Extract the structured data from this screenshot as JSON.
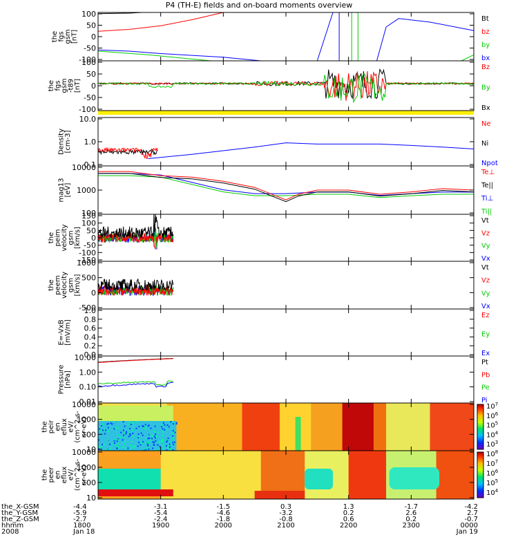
{
  "title": "P4 (TH-E) fields and on-board moments overview",
  "panels": [
    {
      "id": "fgs",
      "ylabel": [
        "the",
        "fgs",
        "gsm",
        "[nT]"
      ],
      "yticks": [
        "100",
        "50",
        "0",
        "-50",
        "-100"
      ],
      "legend": [
        {
          "text": "Bt",
          "color": "#000000"
        },
        {
          "text": "bz",
          "color": "#ff0000"
        },
        {
          "text": "by",
          "color": "#00cc00"
        },
        {
          "text": "bx",
          "color": "#0000ff"
        }
      ]
    },
    {
      "id": "fgs_t89",
      "ylabel": [
        "the",
        "fgs",
        "gsm",
        "-t89",
        "[nT]"
      ],
      "yticks": [
        "100",
        "50",
        "0",
        "-50",
        "-100"
      ],
      "legend": [
        {
          "text": "Bz",
          "color": "#ff0000"
        },
        {
          "text": "By",
          "color": "#00cc00"
        },
        {
          "text": "Bx",
          "color": "#000000"
        }
      ]
    },
    {
      "id": "density",
      "ylabel": [
        "Density",
        "[cm-3]"
      ],
      "yticks": [
        "10.0",
        "1.0",
        "0.1"
      ],
      "legend": [
        {
          "text": "Ne",
          "color": "#ff0000"
        },
        {
          "text": "Ni",
          "color": "#000000"
        },
        {
          "text": "Npot",
          "color": "#0000ff"
        }
      ]
    },
    {
      "id": "temperature",
      "ylabel": [
        "mag13",
        "[eV]"
      ],
      "yticks": [
        "10000",
        "1000",
        "100"
      ],
      "legend": [
        {
          "text": "Te⊥",
          "color": "#ff0000"
        },
        {
          "text": "Te||",
          "color": "#000000"
        },
        {
          "text": "Ti⊥",
          "color": "#0000ff"
        },
        {
          "text": "Ti||",
          "color": "#00cc00"
        }
      ]
    },
    {
      "id": "peim_velocity",
      "ylabel": [
        "the",
        "peim",
        "velocity",
        "gsm",
        "[km/s]"
      ],
      "yticks": [
        "150",
        "100",
        "50",
        "0",
        "-50",
        "-100",
        "-150"
      ],
      "legend": [
        {
          "text": "Vt",
          "color": "#000000"
        },
        {
          "text": "Vz",
          "color": "#ff0000"
        },
        {
          "text": "Vy",
          "color": "#00cc00"
        },
        {
          "text": "Vx",
          "color": "#0000ff"
        }
      ]
    },
    {
      "id": "peem_velocity",
      "ylabel": [
        "the",
        "peem",
        "velocity",
        "gsm",
        "[km/s]"
      ],
      "yticks": [
        "1000",
        "500",
        "0",
        "-500"
      ],
      "legend": [
        {
          "text": "Vt",
          "color": "#000000"
        },
        {
          "text": "Vz",
          "color": "#ff0000"
        },
        {
          "text": "Vy",
          "color": "#00cc00"
        },
        {
          "text": "Vx",
          "color": "#0000ff"
        }
      ]
    },
    {
      "id": "efield",
      "ylabel": [
        "E=-VxB",
        "[mV/m]"
      ],
      "yticks": [
        "1.0",
        "0.8",
        "0.6",
        "0.4",
        "0.2",
        "0.0"
      ],
      "legend": [
        {
          "text": "Ez",
          "color": "#ff0000"
        },
        {
          "text": "Ey",
          "color": "#00cc00"
        },
        {
          "text": "Ex",
          "color": "#0000ff"
        }
      ]
    },
    {
      "id": "pressure",
      "ylabel": [
        "Pressure",
        "[nPa]"
      ],
      "yticks": [
        "10.00",
        "1.00",
        "0.10",
        "0.01"
      ],
      "legend": [
        {
          "text": "Pt",
          "color": "#000000"
        },
        {
          "text": "Pb",
          "color": "#ff0000"
        },
        {
          "text": "Pe",
          "color": "#00cc00"
        },
        {
          "text": "Pi",
          "color": "#0000ff"
        }
      ]
    },
    {
      "id": "peir_spec",
      "ylabel": [
        "the",
        "peir",
        "en",
        "eflux",
        "eV/",
        "(cm^2-s-",
        "sr-eV)"
      ],
      "yticks": [
        "10000",
        "1000",
        "100",
        "10"
      ],
      "colorbar": [
        "10^7",
        "10^6",
        "10^5",
        "10^4",
        "10^3"
      ]
    },
    {
      "id": "peer_spec",
      "ylabel": [
        "the",
        "peer",
        "en",
        "eflux",
        "eV/",
        "(cm^2-s-",
        "sr-eV)"
      ],
      "yticks": [
        "10000",
        "1000",
        "100",
        "10"
      ],
      "colorbar": [
        "10^8",
        "10^7",
        "10^6",
        "10^5",
        "10^4"
      ]
    }
  ],
  "footer": {
    "row_labels": [
      "the_X-GSM",
      "the_Y-GSM",
      "the_Z-GSM",
      "hhmm",
      "2008"
    ],
    "columns": [
      {
        "x": "-4.4",
        "y": "-5.9",
        "z": "-2.7",
        "t": "1800",
        "d": "Jan 18"
      },
      {
        "x": "-3.1",
        "y": "-5.4",
        "z": "-2.4",
        "t": "1900",
        "d": ""
      },
      {
        "x": "-1.5",
        "y": "-4.6",
        "z": "-1.8",
        "t": "2000",
        "d": ""
      },
      {
        "x": "0.3",
        "y": "-3.2",
        "z": "-0.8",
        "t": "2100",
        "d": ""
      },
      {
        "x": "1.3",
        "y": "0.2",
        "z": "0.6",
        "t": "2200",
        "d": ""
      },
      {
        "x": "-1.7",
        "y": "2.6",
        "z": "0.2",
        "t": "2300",
        "d": ""
      },
      {
        "x": "-4.2",
        "y": "2.7",
        "z": "-0.7",
        "t": "0000",
        "d": "Jan 19"
      }
    ]
  },
  "chart_data": {
    "type": "line",
    "title": "P4 (TH-E) fields and on-board moments overview",
    "x_ticks": [
      "1800",
      "1900",
      "2000",
      "2100",
      "2200",
      "2300",
      "0000"
    ],
    "xlim_hours": [
      18,
      24
    ],
    "series": [
      {
        "name": "Npot",
        "panel": "density",
        "x": [
          18.8,
          19.5,
          20.5,
          21.0,
          21.5,
          22.0,
          22.5,
          23.0,
          23.5,
          24.0
        ],
        "values": [
          0.2,
          0.3,
          0.6,
          0.9,
          0.8,
          0.8,
          0.8,
          0.7,
          0.6,
          0.5
        ]
      },
      {
        "name": "Ne",
        "panel": "density",
        "x": [
          18.0,
          18.3,
          18.6,
          18.9
        ],
        "values": [
          0.3,
          0.4,
          0.35,
          0.4
        ]
      },
      {
        "name": "Te⊥",
        "panel": "temperature",
        "x": [
          18.0,
          18.5,
          19.0,
          19.5,
          20.0,
          20.5,
          21.0,
          21.2,
          21.5,
          22.0,
          22.5,
          23.0,
          23.5,
          24.0
        ],
        "values": [
          5000,
          5000,
          3000,
          2500,
          1500,
          700,
          150,
          300,
          500,
          500,
          300,
          400,
          600,
          500
        ]
      },
      {
        "name": "Ti||",
        "panel": "temperature",
        "x": [
          18.0,
          18.5,
          19.0,
          19.5,
          20.0,
          20.5,
          21.0,
          21.5,
          22.0,
          22.5,
          23.0,
          23.5,
          24.0
        ],
        "values": [
          3000,
          3000,
          2500,
          1000,
          400,
          250,
          250,
          300,
          300,
          200,
          250,
          300,
          300
        ]
      },
      {
        "name": "bx",
        "panel": "fgs",
        "x": [
          18.0,
          18.5,
          19.0,
          20.0,
          20.6
        ],
        "values": [
          -55,
          -60,
          -70,
          -85,
          -100
        ]
      },
      {
        "name": "bz",
        "panel": "fgs",
        "x": [
          18.0,
          18.5,
          19.0,
          19.5,
          20.0
        ],
        "values": [
          22,
          30,
          45,
          70,
          100
        ]
      }
    ]
  }
}
